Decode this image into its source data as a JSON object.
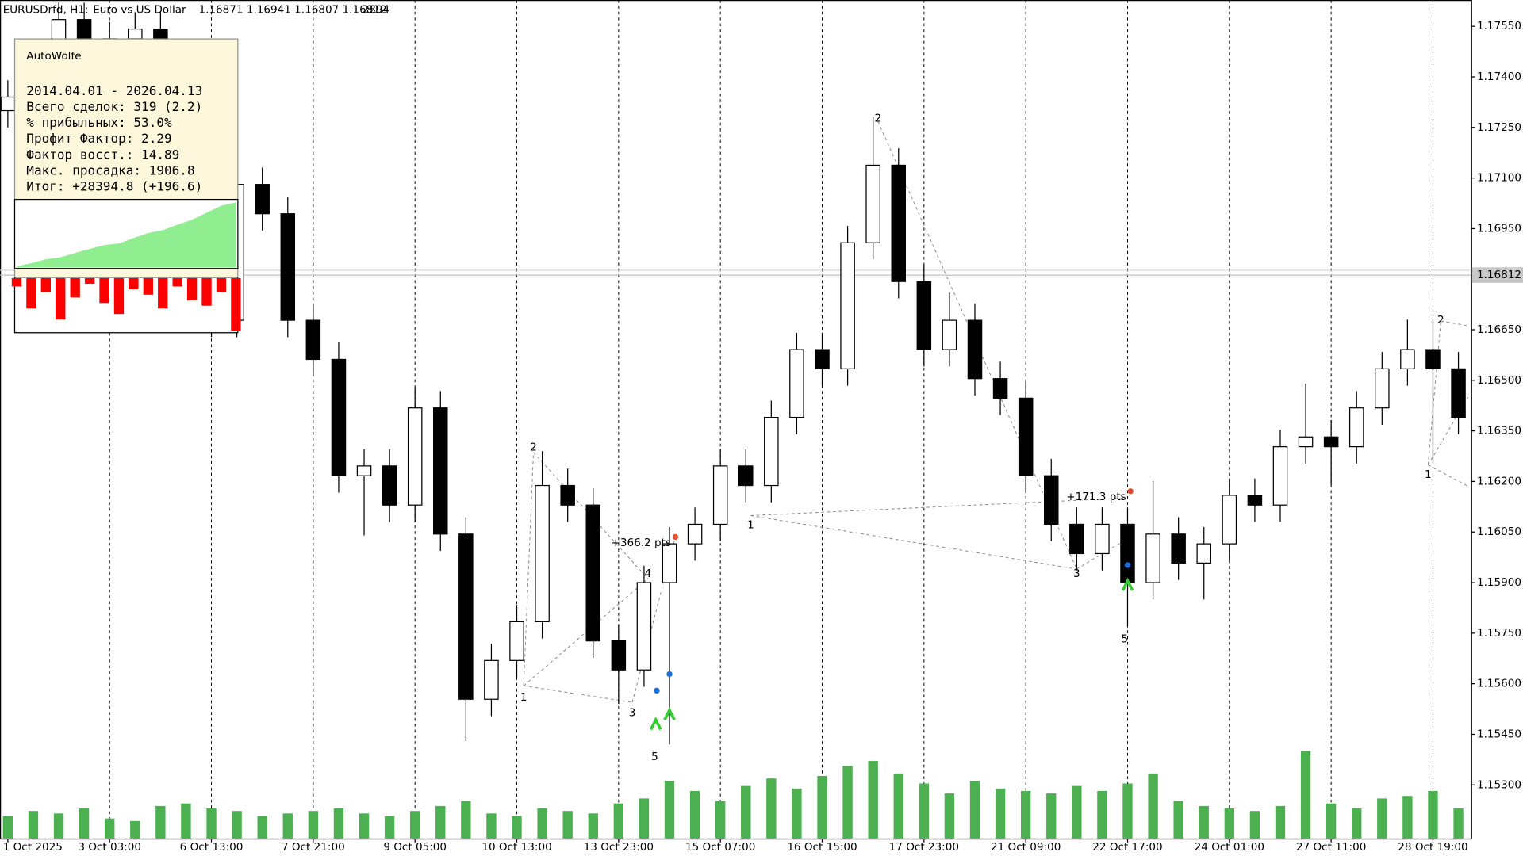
{
  "header": {
    "symbol": "EURUSDrfd, H1:",
    "description": "Euro vs US Dollar",
    "quote": "1.16871 1.16941 1.16807 1.16812",
    "volume": "2894"
  },
  "panel": {
    "title": "AutoWolfe",
    "lines": [
      {
        "text": "2014.04.01 - 2026.04.13",
        "color": "#000000"
      },
      {
        "text": "Всего сделок: 319 (2.2)",
        "color": "#000000"
      },
      {
        "text": "% прибыльных: 53.0%",
        "color": "#000000"
      },
      {
        "text": "Профит Фактор: 2.29",
        "color": "#228b22"
      },
      {
        "text": "Фактор восст.: 14.89",
        "color": "#228b22"
      },
      {
        "text": "Макс. просадка: 1906.8",
        "color": "#ff2020"
      },
      {
        "text": "Итог: +28394.8 (+196.6)",
        "color": "#228b22"
      }
    ],
    "equity": [
      0,
      1500,
      3200,
      4100,
      6000,
      7800,
      9500,
      10200,
      12600,
      14800,
      16100,
      18500,
      20700,
      23800,
      26900,
      28394.8
    ],
    "equity_color": "#90ee90",
    "drawdown": [
      -300,
      -1100,
      -500,
      -1500,
      -700,
      -200,
      -900,
      -1300,
      -400,
      -600,
      -1100,
      -300,
      -800,
      -1000,
      -500,
      -1906.8
    ],
    "drawdown_color": "#ff0000"
  },
  "chart_data": {
    "type": "candlestick",
    "candles": [
      [
        1.173,
        1.1739,
        1.1725,
        1.1734
      ],
      [
        1.1734,
        1.17447,
        1.1729,
        1.17397
      ],
      [
        1.17397,
        1.1762,
        1.17347,
        1.1757
      ],
      [
        1.1757,
        1.1762,
        1.17434,
        1.17484
      ],
      [
        1.17484,
        1.17563,
        1.17434,
        1.17513
      ],
      [
        1.17513,
        1.17592,
        1.17463,
        1.17542
      ],
      [
        1.17542,
        1.17592,
        1.1729,
        1.1734
      ],
      [
        1.1734,
        1.1739,
        1.17002,
        1.17052
      ],
      [
        1.17052,
        1.17102,
        1.16628,
        1.16678
      ],
      [
        1.16678,
        1.17131,
        1.16628,
        1.17081
      ],
      [
        1.17081,
        1.17131,
        1.16944,
        1.16994
      ],
      [
        1.16994,
        1.17044,
        1.16628,
        1.16678
      ],
      [
        1.16678,
        1.16728,
        1.16512,
        1.16562
      ],
      [
        1.16562,
        1.16612,
        1.16167,
        1.16217
      ],
      [
        1.16217,
        1.16296,
        1.1604,
        1.16246
      ],
      [
        1.16246,
        1.16296,
        1.1608,
        1.1613
      ],
      [
        1.1613,
        1.1648,
        1.1608,
        1.16418
      ],
      [
        1.16418,
        1.16468,
        1.15994,
        1.16044
      ],
      [
        1.16044,
        1.16094,
        1.1543,
        1.15554
      ],
      [
        1.15554,
        1.15719,
        1.15504,
        1.15669
      ],
      [
        1.15669,
        1.15834,
        1.15619,
        1.15784
      ],
      [
        1.15784,
        1.1629,
        1.15734,
        1.16188
      ],
      [
        1.16188,
        1.16238,
        1.1608,
        1.1613
      ],
      [
        1.1613,
        1.1618,
        1.15677,
        1.15727
      ],
      [
        1.15727,
        1.15777,
        1.1554,
        1.15641
      ],
      [
        1.15641,
        1.1595,
        1.15591,
        1.159
      ],
      [
        1.159,
        1.16065,
        1.1542,
        1.16015
      ],
      [
        1.16015,
        1.16123,
        1.15965,
        1.16073
      ],
      [
        1.16073,
        1.16296,
        1.16023,
        1.16246
      ],
      [
        1.16246,
        1.16296,
        1.16138,
        1.16188
      ],
      [
        1.16188,
        1.1644,
        1.16138,
        1.1639
      ],
      [
        1.1639,
        1.16641,
        1.1634,
        1.16591
      ],
      [
        1.16591,
        1.16641,
        1.16484,
        1.16534
      ],
      [
        1.16534,
        1.16958,
        1.16484,
        1.16908
      ],
      [
        1.16908,
        1.1728,
        1.16858,
        1.17138
      ],
      [
        1.17138,
        1.17188,
        1.16743,
        1.16793
      ],
      [
        1.16793,
        1.16843,
        1.16541,
        1.16591
      ],
      [
        1.16591,
        1.1676,
        1.16541,
        1.16678
      ],
      [
        1.16678,
        1.16728,
        1.16455,
        1.16505
      ],
      [
        1.16505,
        1.16555,
        1.16397,
        1.16447
      ],
      [
        1.16447,
        1.16497,
        1.16167,
        1.16217
      ],
      [
        1.16217,
        1.16267,
        1.16023,
        1.16073
      ],
      [
        1.16073,
        1.16123,
        1.15936,
        1.15986
      ],
      [
        1.15986,
        1.16123,
        1.15936,
        1.16073
      ],
      [
        1.16073,
        1.16123,
        1.1577,
        1.159
      ],
      [
        1.159,
        1.162,
        1.1585,
        1.16044
      ],
      [
        1.16044,
        1.16094,
        1.15908,
        1.15958
      ],
      [
        1.15958,
        1.16065,
        1.1585,
        1.16015
      ],
      [
        1.16015,
        1.16209,
        1.15965,
        1.16159
      ],
      [
        1.16159,
        1.16209,
        1.1608,
        1.1613
      ],
      [
        1.1613,
        1.16353,
        1.1608,
        1.16303
      ],
      [
        1.16303,
        1.1649,
        1.16253,
        1.16332
      ],
      [
        1.16332,
        1.16382,
        1.1619,
        1.16303
      ],
      [
        1.16303,
        1.16468,
        1.16253,
        1.16418
      ],
      [
        1.16418,
        1.16584,
        1.16368,
        1.16534
      ],
      [
        1.16534,
        1.1668,
        1.16484,
        1.16591
      ],
      [
        1.16591,
        1.1668,
        1.1625,
        1.16534
      ],
      [
        1.16534,
        1.16584,
        1.1634,
        1.1639
      ]
    ],
    "volumes": [
      900,
      1100,
      1000,
      1200,
      800,
      700,
      1300,
      1400,
      1200,
      1100,
      900,
      1000,
      1100,
      1200,
      1000,
      900,
      1100,
      1300,
      1500,
      1000,
      900,
      1200,
      1100,
      1000,
      1400,
      1600,
      2300,
      1900,
      1500,
      2100,
      2400,
      2000,
      2500,
      2900,
      3100,
      2600,
      2200,
      1800,
      2300,
      2000,
      1900,
      1800,
      2100,
      1900,
      2200,
      2600,
      1500,
      1300,
      1200,
      1100,
      1300,
      3500,
      1400,
      1200,
      1600,
      1700,
      1900,
      1200
    ],
    "volume_color": "#4caf50",
    "xticks": [
      {
        "value": 0,
        "label": "1 Oct 2025"
      },
      {
        "value": 4,
        "label": "3 Oct 03:00"
      },
      {
        "value": 8,
        "label": "6 Oct 13:00"
      },
      {
        "value": 12,
        "label": "7 Oct 21:00"
      },
      {
        "value": 16,
        "label": "9 Oct 05:00"
      },
      {
        "value": 20,
        "label": "10 Oct 13:00"
      },
      {
        "value": 24,
        "label": "13 Oct 23:00"
      },
      {
        "value": 28,
        "label": "15 Oct 07:00"
      },
      {
        "value": 32,
        "label": "16 Oct 15:00"
      },
      {
        "value": 36,
        "label": "17 Oct 23:00"
      },
      {
        "value": 40,
        "label": "21 Oct 09:00"
      },
      {
        "value": 44,
        "label": "22 Oct 17:00"
      },
      {
        "value": 48,
        "label": "24 Oct 01:00"
      },
      {
        "value": 52,
        "label": "27 Oct 11:00"
      },
      {
        "value": 56,
        "label": "28 Oct 19:00"
      }
    ],
    "ylim": [
      1.15141,
      1.17628
    ],
    "yticks": [
      {
        "value": 1.1755,
        "label": "1.17550"
      },
      {
        "value": 1.174,
        "label": "1.17400"
      },
      {
        "value": 1.1725,
        "label": "1.17250"
      },
      {
        "value": 1.171,
        "label": "1.17100"
      },
      {
        "value": 1.1695,
        "label": "1.16950"
      },
      {
        "value": 1.1665,
        "label": "1.16650"
      },
      {
        "value": 1.165,
        "label": "1.16500"
      },
      {
        "value": 1.1635,
        "label": "1.16350"
      },
      {
        "value": 1.162,
        "label": "1.16200"
      },
      {
        "value": 1.1605,
        "label": "1.16050"
      },
      {
        "value": 1.159,
        "label": "1.15900"
      },
      {
        "value": 1.1575,
        "label": "1.15750"
      },
      {
        "value": 1.156,
        "label": "1.15600"
      },
      {
        "value": 1.1545,
        "label": "1.15450"
      },
      {
        "value": 1.153,
        "label": "1.15300"
      }
    ],
    "bid": {
      "value": 1.16812,
      "label": "1.16812"
    },
    "grid": true,
    "annotations": [
      {
        "text": "2",
        "color": "#32cd32"
      },
      {
        "text": "1",
        "color": "#32cd32"
      },
      {
        "text": "3",
        "color": "#32cd32"
      },
      {
        "text": "4",
        "color": "#32cd32"
      },
      {
        "text": "5",
        "color": "#32cd32"
      },
      {
        "text": "+366.2 pts",
        "color": "#32cd32"
      },
      {
        "text": "1",
        "color": "#32cd32"
      },
      {
        "text": "2",
        "color": "#32cd32"
      },
      {
        "text": "3",
        "color": "#32cd32"
      },
      {
        "text": "5",
        "color": "#32cd32"
      },
      {
        "text": "+171.3 pts",
        "color": "#32cd32"
      },
      {
        "text": "2",
        "color": "#dc143c"
      },
      {
        "text": "1",
        "color": "#dc143c"
      }
    ]
  }
}
